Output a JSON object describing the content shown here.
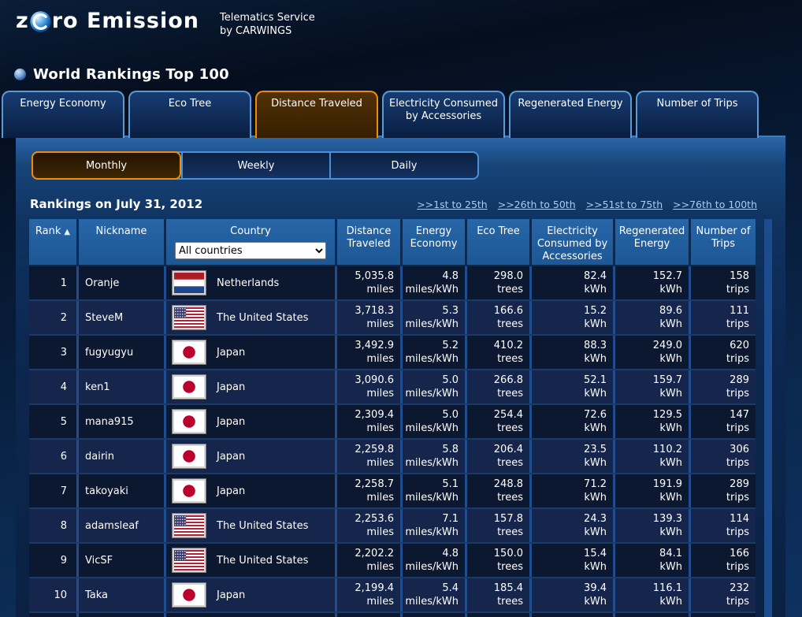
{
  "header": {
    "logo_z": "z",
    "logo_rest": "ro Emission",
    "tagline_line1": "Telematics Service",
    "tagline_line2": "by CARWINGS"
  },
  "page_title": "World Rankings Top 100",
  "tabs": [
    {
      "label": "Energy Economy",
      "active": false
    },
    {
      "label": "Eco Tree",
      "active": false
    },
    {
      "label": "Distance Traveled",
      "active": true
    },
    {
      "label": "Electricity Consumed by Accessories",
      "active": false
    },
    {
      "label": "Regenerated Energy",
      "active": false
    },
    {
      "label": "Number of Trips",
      "active": false
    }
  ],
  "period_tabs": [
    {
      "label": "Monthly",
      "active": true
    },
    {
      "label": "Weekly",
      "active": false
    },
    {
      "label": "Daily",
      "active": false
    }
  ],
  "rankings_heading": "Rankings on July 31, 2012",
  "pagination_links": [
    ">>1st to 25th",
    ">>26th to 50th",
    ">>51st to 75th",
    ">>76th to 100th"
  ],
  "table": {
    "columns": [
      "Rank",
      "Nickname",
      "Country",
      "Distance Traveled",
      "Energy Economy",
      "Eco Tree",
      "Electricity Consumed by Accessories",
      "Regenerated Energy",
      "Number of Trips"
    ],
    "sort_arrow": "▲",
    "country_filter_selected": "All countries",
    "units": {
      "distance": "miles",
      "economy": "miles/kWh",
      "eco_tree": "trees",
      "electricity": "kWh",
      "regenerated": "kWh",
      "trips": "trips"
    },
    "rows": [
      {
        "rank": "1",
        "nickname": "Oranje",
        "country": "Netherlands",
        "flag": "nl",
        "distance": "5,035.8",
        "economy": "4.8",
        "eco_tree": "298.0",
        "electricity": "82.4",
        "regenerated": "152.7",
        "trips": "158"
      },
      {
        "rank": "2",
        "nickname": "SteveM",
        "country": "The United States",
        "flag": "us",
        "distance": "3,718.3",
        "economy": "5.3",
        "eco_tree": "166.6",
        "electricity": "15.2",
        "regenerated": "89.6",
        "trips": "111"
      },
      {
        "rank": "3",
        "nickname": "fugyugyu",
        "country": "Japan",
        "flag": "jp",
        "distance": "3,492.9",
        "economy": "5.2",
        "eco_tree": "410.2",
        "electricity": "88.3",
        "regenerated": "249.0",
        "trips": "620"
      },
      {
        "rank": "4",
        "nickname": "ken1",
        "country": "Japan",
        "flag": "jp",
        "distance": "3,090.6",
        "economy": "5.0",
        "eco_tree": "266.8",
        "electricity": "52.1",
        "regenerated": "159.7",
        "trips": "289"
      },
      {
        "rank": "5",
        "nickname": "mana915",
        "country": "Japan",
        "flag": "jp",
        "distance": "2,309.4",
        "economy": "5.0",
        "eco_tree": "254.4",
        "electricity": "72.6",
        "regenerated": "129.5",
        "trips": "147"
      },
      {
        "rank": "6",
        "nickname": "dairin",
        "country": "Japan",
        "flag": "jp",
        "distance": "2,259.8",
        "economy": "5.8",
        "eco_tree": "206.4",
        "electricity": "23.5",
        "regenerated": "110.2",
        "trips": "306"
      },
      {
        "rank": "7",
        "nickname": "takoyaki",
        "country": "Japan",
        "flag": "jp",
        "distance": "2,258.7",
        "economy": "5.1",
        "eco_tree": "248.8",
        "electricity": "71.2",
        "regenerated": "191.9",
        "trips": "289"
      },
      {
        "rank": "8",
        "nickname": "adamsleaf",
        "country": "The United States",
        "flag": "us",
        "distance": "2,253.6",
        "economy": "7.1",
        "eco_tree": "157.8",
        "electricity": "24.3",
        "regenerated": "139.3",
        "trips": "114"
      },
      {
        "rank": "9",
        "nickname": "VicSF",
        "country": "The United States",
        "flag": "us",
        "distance": "2,202.2",
        "economy": "4.8",
        "eco_tree": "150.0",
        "electricity": "15.4",
        "regenerated": "84.1",
        "trips": "166"
      },
      {
        "rank": "10",
        "nickname": "Taka",
        "country": "Japan",
        "flag": "jp",
        "distance": "2,199.4",
        "economy": "5.4",
        "eco_tree": "185.4",
        "electricity": "39.4",
        "regenerated": "116.1",
        "trips": "232"
      },
      {
        "rank": "",
        "nickname": "",
        "country": "",
        "flag": "jp",
        "distance": "",
        "economy": "",
        "eco_tree": "",
        "electricity": "",
        "regenerated": "",
        "trips": ""
      }
    ]
  },
  "colors": {
    "accent_orange": "#f08c00",
    "tab_border_blue": "#5b9bd5",
    "table_header_blue": "#2060a2",
    "link_blue": "#a9cdf0",
    "row_odd": "#0c1730",
    "row_even": "#16254b"
  }
}
